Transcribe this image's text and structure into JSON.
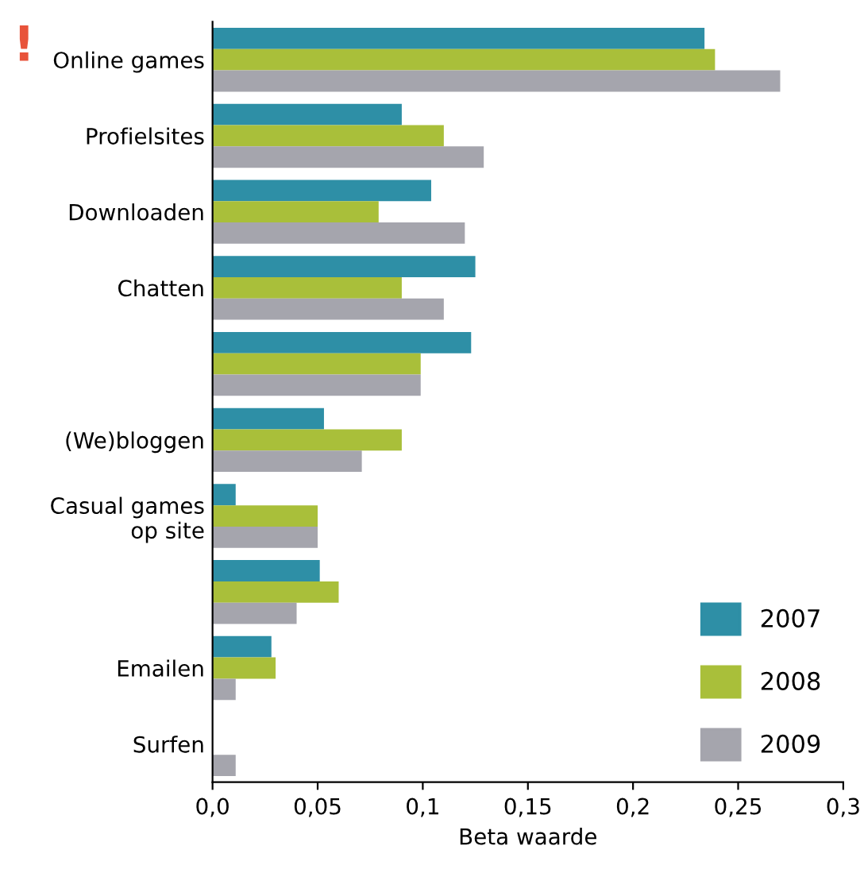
{
  "chart_data": {
    "type": "bar",
    "orientation": "horizontal",
    "xlabel": "Beta waarde",
    "categories": [
      "Online games",
      "Profielsites",
      "Downloaden",
      "Chatten",
      null,
      "(We)bloggen",
      "Casual games\nop site",
      null,
      "Emailen",
      "Surfen"
    ],
    "series": [
      {
        "name": "2007",
        "color": "#2e8fa6",
        "values": [
          0.234,
          0.09,
          0.104,
          0.125,
          0.123,
          0.053,
          0.011,
          0.051,
          0.028,
          0
        ]
      },
      {
        "name": "2008",
        "color": "#a9bf3a",
        "values": [
          0.239,
          0.11,
          0.079,
          0.09,
          0.099,
          0.09,
          0.05,
          0.06,
          0.03,
          0
        ]
      },
      {
        "name": "2009",
        "color": "#a5a5ad",
        "values": [
          0.27,
          0.129,
          0.12,
          0.11,
          0.099,
          0.071,
          0.05,
          0.04,
          0.011,
          0.011
        ]
      }
    ],
    "xlim": [
      0,
      0.3
    ],
    "xticks": [
      {
        "value": 0,
        "label": "0,0"
      },
      {
        "value": 0.05,
        "label": "0,05"
      },
      {
        "value": 0.1,
        "label": "0,1"
      },
      {
        "value": 0.15,
        "label": "0,15"
      },
      {
        "value": 0.2,
        "label": "0,2"
      },
      {
        "value": 0.25,
        "label": "0,25"
      },
      {
        "value": 0.3,
        "label": "0,3"
      }
    ],
    "annotations": [
      "!"
    ],
    "legend": "bottom right",
    "grid": false
  }
}
